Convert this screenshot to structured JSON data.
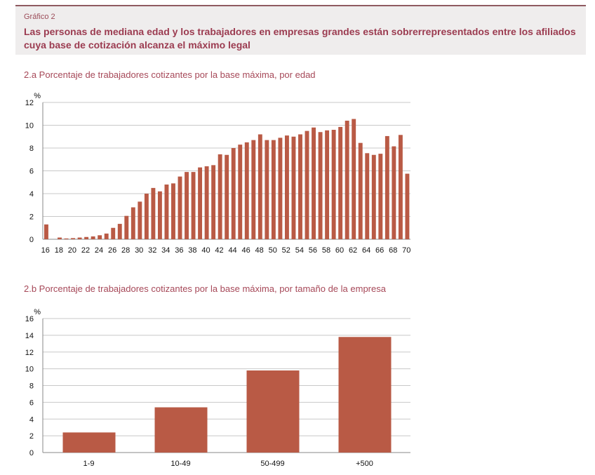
{
  "header": {
    "kicker": "Gráfico 2",
    "title": "Las personas de mediana edad y los trabajadores en empresas grandes están sobrerrepresentados entre los afiliados cuya base de cotización alcanza el máximo legal"
  },
  "colors": {
    "bar": "#b95a45",
    "accent": "#9b3b50"
  },
  "chart_data": [
    {
      "type": "bar",
      "title": "2.a  Porcentaje de trabajadores cotizantes por la base máxima, por edad",
      "ylabel": "%",
      "ylim": [
        0,
        12
      ],
      "yticks": [
        0,
        2,
        4,
        6,
        8,
        10,
        12
      ],
      "grid": true,
      "categories": [
        16,
        17,
        18,
        19,
        20,
        21,
        22,
        23,
        24,
        25,
        26,
        27,
        28,
        29,
        30,
        31,
        32,
        33,
        34,
        35,
        36,
        37,
        38,
        39,
        40,
        41,
        42,
        43,
        44,
        45,
        46,
        47,
        48,
        49,
        50,
        51,
        52,
        53,
        54,
        55,
        56,
        57,
        58,
        59,
        60,
        61,
        62,
        63,
        64,
        65,
        66,
        67,
        68,
        69,
        70
      ],
      "xtick_labels": [
        "16",
        "18",
        "20",
        "22",
        "24",
        "26",
        "28",
        "30",
        "32",
        "34",
        "36",
        "38",
        "40",
        "42",
        "44",
        "46",
        "48",
        "50",
        "52",
        "54",
        "56",
        "58",
        "60",
        "62",
        "64",
        "66",
        "68",
        "70"
      ],
      "values": [
        1.3,
        0,
        0.15,
        0.07,
        0.1,
        0.15,
        0.2,
        0.25,
        0.35,
        0.5,
        1.0,
        1.35,
        2.05,
        2.8,
        3.3,
        4.0,
        4.5,
        4.2,
        4.8,
        4.9,
        5.5,
        5.9,
        5.9,
        6.3,
        6.4,
        6.5,
        7.45,
        7.4,
        8.0,
        8.3,
        8.5,
        8.7,
        9.2,
        8.7,
        8.7,
        8.9,
        9.1,
        9.0,
        9.2,
        9.5,
        9.8,
        9.4,
        9.55,
        9.6,
        9.85,
        10.4,
        10.55,
        8.45,
        7.55,
        7.4,
        7.5,
        9.05,
        8.15,
        9.15,
        5.75
      ]
    },
    {
      "type": "bar",
      "title": "2.b  Porcentaje de trabajadores cotizantes por la base máxima, por tamaño de la empresa",
      "ylabel": "%",
      "ylim": [
        0,
        16
      ],
      "yticks": [
        0,
        2,
        4,
        6,
        8,
        10,
        12,
        14,
        16
      ],
      "grid": true,
      "categories": [
        "1-9",
        "10-49",
        "50-499",
        "+500"
      ],
      "values": [
        2.4,
        5.4,
        9.8,
        13.8
      ]
    }
  ]
}
